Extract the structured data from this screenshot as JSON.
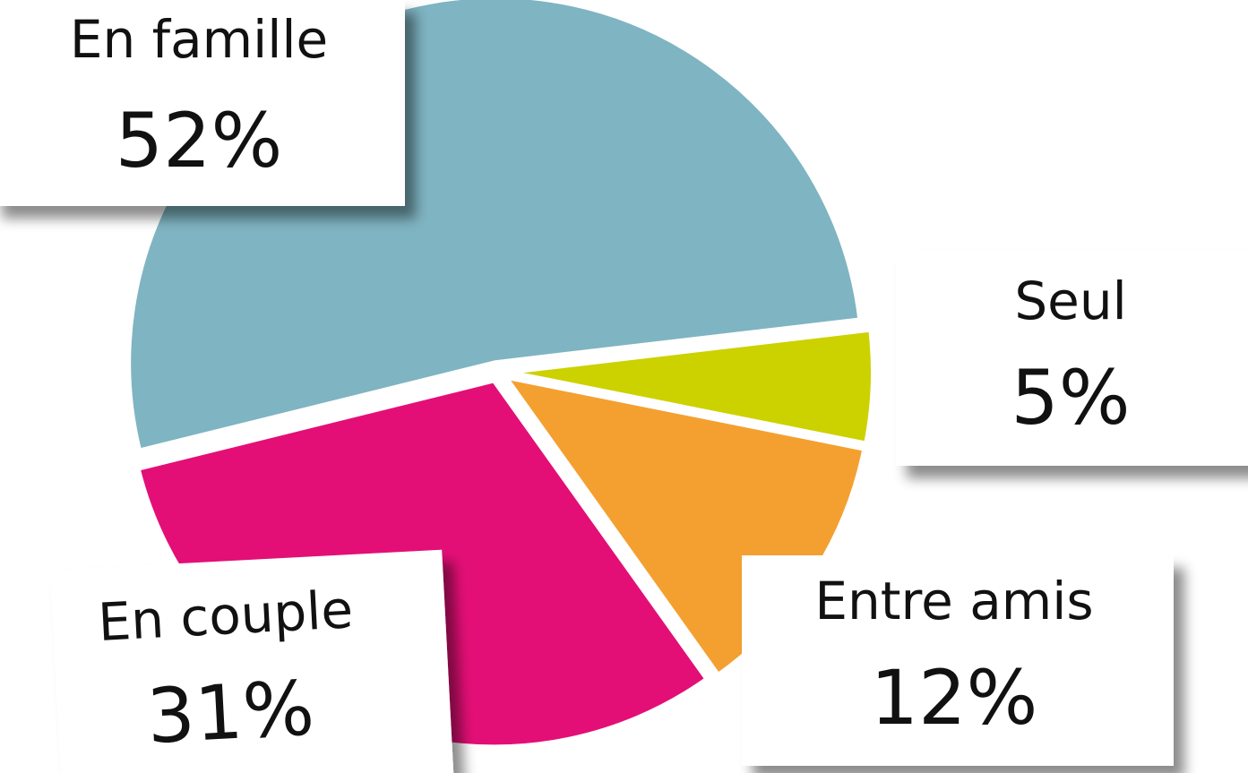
{
  "chart_data": {
    "type": "pie",
    "categories": [
      "Seul",
      "Entre amis",
      "En couple",
      "En famille"
    ],
    "values": [
      5,
      12,
      31,
      52
    ],
    "value_labels": [
      "5%",
      "12%",
      "31%",
      "52%"
    ],
    "colors": [
      "#ccd200",
      "#f4a030",
      "#e30f76",
      "#7fb4c2"
    ]
  }
}
